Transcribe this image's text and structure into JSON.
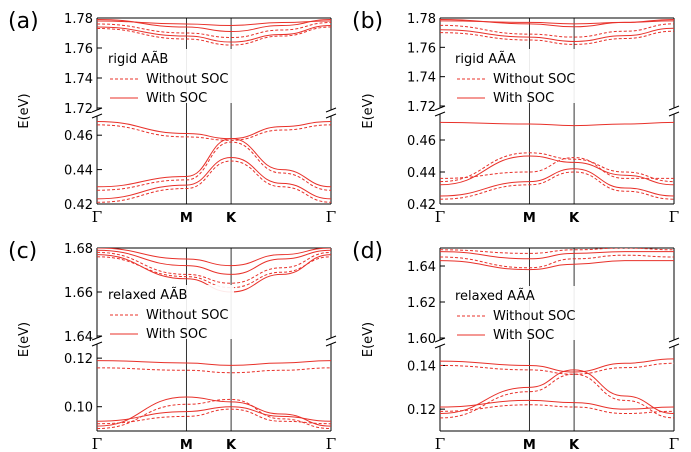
{
  "chart_data": [
    {
      "type": "line",
      "panel": "(a)",
      "legend_title": "rigid  AÃB",
      "legend": [
        {
          "name": "Without SOC",
          "style": "dashed"
        },
        {
          "name": "With SOC",
          "style": "solid"
        }
      ],
      "ylabel": "E(eV)",
      "x_ticks": [
        "Γ",
        "M",
        "K",
        "Γ"
      ],
      "y_upper": {
        "range": [
          1.72,
          1.78
        ],
        "ticks": [
          "1.72",
          "1.74",
          "1.76",
          "1.78"
        ]
      },
      "y_lower": {
        "range": [
          0.42,
          0.47
        ],
        "ticks": [
          "0.42",
          "0.44",
          "0.46"
        ]
      },
      "color": "#e8312a",
      "upper_bands": [
        [
          1.779,
          1.774,
          1.771,
          1.775,
          1.779
        ],
        [
          1.776,
          1.77,
          1.767,
          1.772,
          1.777
        ],
        [
          1.774,
          1.768,
          1.764,
          1.769,
          1.775
        ],
        [
          1.773,
          1.766,
          1.762,
          1.768,
          1.774
        ],
        [
          1.778,
          1.776,
          1.775,
          1.777,
          1.778
        ]
      ],
      "lower_bands": [
        [
          0.468,
          0.461,
          0.458,
          0.465,
          0.468
        ],
        [
          0.466,
          0.459,
          0.457,
          0.463,
          0.466
        ],
        [
          0.43,
          0.436,
          0.458,
          0.44,
          0.43
        ],
        [
          0.428,
          0.434,
          0.456,
          0.438,
          0.428
        ],
        [
          0.423,
          0.431,
          0.447,
          0.432,
          0.423
        ],
        [
          0.421,
          0.429,
          0.445,
          0.43,
          0.421
        ]
      ]
    },
    {
      "type": "line",
      "panel": "(b)",
      "legend_title": "rigid  AÃA",
      "legend": [
        {
          "name": "Without SOC",
          "style": "dashed"
        },
        {
          "name": "With SOC",
          "style": "solid"
        }
      ],
      "ylabel": "E(eV)",
      "x_ticks": [
        "Γ",
        "M",
        "K",
        "Γ"
      ],
      "y_upper": {
        "range": [
          1.72,
          1.78
        ],
        "ticks": [
          "1.72",
          "1.74",
          "1.76",
          "1.78"
        ]
      },
      "y_lower": {
        "range": [
          0.42,
          0.475
        ],
        "ticks": [
          "0.42",
          "0.44",
          "0.46"
        ]
      },
      "color": "#e8312a",
      "upper_bands": [
        [
          1.779,
          1.776,
          1.774,
          1.777,
          1.779
        ],
        [
          1.775,
          1.769,
          1.767,
          1.771,
          1.776
        ],
        [
          1.772,
          1.767,
          1.764,
          1.768,
          1.773
        ],
        [
          1.77,
          1.765,
          1.762,
          1.766,
          1.771
        ],
        [
          1.778,
          1.777,
          1.776,
          1.777,
          1.778
        ]
      ],
      "lower_bands": [
        [
          0.471,
          0.47,
          0.469,
          0.47,
          0.471
        ],
        [
          0.434,
          0.452,
          0.448,
          0.44,
          0.434
        ],
        [
          0.432,
          0.45,
          0.446,
          0.438,
          0.432
        ],
        [
          0.436,
          0.44,
          0.449,
          0.436,
          0.436
        ],
        [
          0.425,
          0.434,
          0.442,
          0.43,
          0.425
        ],
        [
          0.423,
          0.432,
          0.44,
          0.428,
          0.423
        ]
      ]
    },
    {
      "type": "line",
      "panel": "(c)",
      "legend_title": "relaxed AÃB",
      "legend": [
        {
          "name": "Without SOC",
          "style": "dashed"
        },
        {
          "name": "With SOC",
          "style": "solid"
        }
      ],
      "ylabel": "E(eV)",
      "x_ticks": [
        "Γ",
        "M",
        "K",
        "Γ"
      ],
      "y_upper": {
        "range": [
          1.64,
          1.68
        ],
        "ticks": [
          "1.64",
          "1.66",
          "1.68"
        ]
      },
      "y_lower": {
        "range": [
          0.09,
          0.125
        ],
        "ticks": [
          "0.10",
          "0.12"
        ]
      },
      "color": "#e8312a",
      "upper_bands": [
        [
          1.679,
          1.672,
          1.668,
          1.675,
          1.679
        ],
        [
          1.678,
          1.668,
          1.664,
          1.671,
          1.678
        ],
        [
          1.677,
          1.666,
          1.66,
          1.668,
          1.677
        ],
        [
          1.676,
          1.667,
          1.662,
          1.669,
          1.676
        ],
        [
          1.68,
          1.675,
          1.672,
          1.677,
          1.68
        ]
      ],
      "lower_bands": [
        [
          0.119,
          0.118,
          0.117,
          0.118,
          0.119
        ],
        [
          0.116,
          0.115,
          0.114,
          0.115,
          0.116
        ],
        [
          0.092,
          0.104,
          0.102,
          0.097,
          0.092
        ],
        [
          0.091,
          0.101,
          0.103,
          0.095,
          0.091
        ],
        [
          0.094,
          0.098,
          0.1,
          0.096,
          0.094
        ],
        [
          0.093,
          0.096,
          0.099,
          0.094,
          0.093
        ]
      ]
    },
    {
      "type": "line",
      "panel": "(d)",
      "legend_title": "relaxed AÃA",
      "legend": [
        {
          "name": "Without SOC",
          "style": "dashed"
        },
        {
          "name": "With SOC",
          "style": "solid"
        }
      ],
      "ylabel": "E(eV)",
      "x_ticks": [
        "Γ",
        "M",
        "K",
        "Γ"
      ],
      "y_upper": {
        "range": [
          1.6,
          1.65
        ],
        "ticks": [
          "1.60",
          "1.62",
          "1.64"
        ]
      },
      "y_lower": {
        "range": [
          0.11,
          0.148
        ],
        "ticks": [
          "0.12",
          "0.14"
        ]
      },
      "color": "#e8312a",
      "upper_bands": [
        [
          1.648,
          1.644,
          1.647,
          1.648,
          1.648
        ],
        [
          1.645,
          1.639,
          1.644,
          1.646,
          1.645
        ],
        [
          1.643,
          1.638,
          1.641,
          1.643,
          1.643
        ],
        [
          1.649,
          1.647,
          1.649,
          1.65,
          1.649
        ]
      ],
      "lower_bands": [
        [
          0.142,
          0.14,
          0.137,
          0.141,
          0.143
        ],
        [
          0.14,
          0.138,
          0.136,
          0.139,
          0.141
        ],
        [
          0.118,
          0.13,
          0.138,
          0.126,
          0.118
        ],
        [
          0.116,
          0.128,
          0.136,
          0.124,
          0.116
        ],
        [
          0.121,
          0.124,
          0.123,
          0.12,
          0.121
        ],
        [
          0.119,
          0.122,
          0.121,
          0.118,
          0.119
        ]
      ]
    }
  ]
}
